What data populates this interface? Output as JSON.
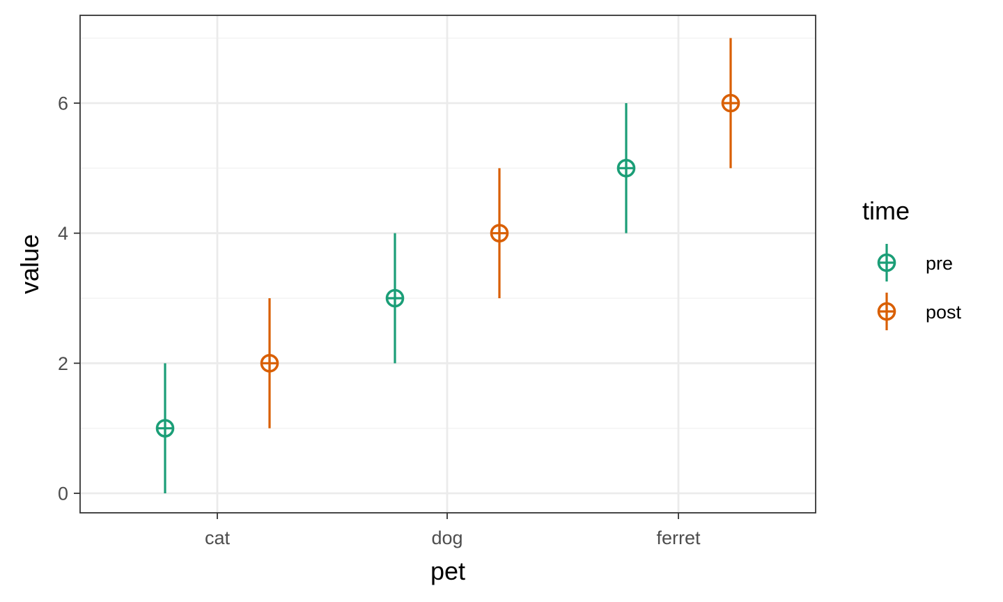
{
  "chart_data": {
    "type": "scatter",
    "geom": "pointrange",
    "x_title": "pet",
    "y_title": "value",
    "categories": [
      "cat",
      "dog",
      "ferret"
    ],
    "y_ticks": [
      0,
      2,
      4,
      6
    ],
    "y_tick_labels": [
      "0",
      "2",
      "4",
      "6"
    ],
    "ylim": [
      -0.3,
      7.35
    ],
    "grid": true,
    "theme": "bw",
    "legend": {
      "title": "time",
      "position": "right",
      "entries": [
        "pre",
        "post"
      ]
    },
    "series": [
      {
        "name": "pre",
        "color": "#1b9e77",
        "points": [
          {
            "category": "cat",
            "y": 1,
            "ymin": 0,
            "ymax": 2
          },
          {
            "category": "dog",
            "y": 3,
            "ymin": 2,
            "ymax": 4
          },
          {
            "category": "ferret",
            "y": 5,
            "ymin": 4,
            "ymax": 6
          }
        ]
      },
      {
        "name": "post",
        "color": "#d95f02",
        "points": [
          {
            "category": "cat",
            "y": 2,
            "ymin": 1,
            "ymax": 3
          },
          {
            "category": "dog",
            "y": 4,
            "ymin": 3,
            "ymax": 5
          },
          {
            "category": "ferret",
            "y": 6,
            "ymin": 5,
            "ymax": 7
          }
        ]
      }
    ],
    "colors": {
      "panel_border": "#333333",
      "grid_major": "#ebebeb",
      "grid_minor": "#f3f3f3"
    }
  }
}
